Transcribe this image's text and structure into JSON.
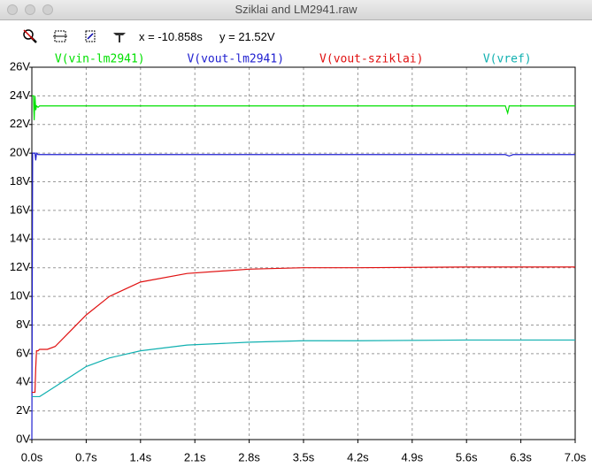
{
  "window": {
    "title": "Sziklai and LM2941.raw"
  },
  "toolbar": {
    "x_readout": "x = -10.858s",
    "y_readout": "y = 21.52V"
  },
  "chart_data": {
    "type": "line",
    "xlim": [
      0,
      7.0
    ],
    "ylim": [
      0,
      26
    ],
    "xticks": [
      {
        "value": 0,
        "label": "0.0s"
      },
      {
        "value": 0.7,
        "label": "0.7s"
      },
      {
        "value": 1.4,
        "label": "1.4s"
      },
      {
        "value": 2.1,
        "label": "2.1s"
      },
      {
        "value": 2.8,
        "label": "2.8s"
      },
      {
        "value": 3.5,
        "label": "3.5s"
      },
      {
        "value": 4.2,
        "label": "4.2s"
      },
      {
        "value": 4.9,
        "label": "4.9s"
      },
      {
        "value": 5.6,
        "label": "5.6s"
      },
      {
        "value": 6.3,
        "label": "6.3s"
      },
      {
        "value": 7.0,
        "label": "7.0s"
      }
    ],
    "yticks": [
      {
        "value": 0,
        "label": "0V"
      },
      {
        "value": 2,
        "label": "2V"
      },
      {
        "value": 4,
        "label": "4V"
      },
      {
        "value": 6,
        "label": "6V"
      },
      {
        "value": 8,
        "label": "8V"
      },
      {
        "value": 10,
        "label": "10V"
      },
      {
        "value": 12,
        "label": "12V"
      },
      {
        "value": 14,
        "label": "14V"
      },
      {
        "value": 16,
        "label": "16V"
      },
      {
        "value": 18,
        "label": "18V"
      },
      {
        "value": 20,
        "label": "20V"
      },
      {
        "value": 22,
        "label": "22V"
      },
      {
        "value": 24,
        "label": "24V"
      },
      {
        "value": 26,
        "label": "26V"
      }
    ],
    "grid": true,
    "series": [
      {
        "name": "V(vin-lm2941)",
        "color": "#00e000",
        "x": [
          0,
          0.02,
          0.03,
          0.04,
          0.05,
          0.06,
          0.08,
          0.1,
          6.1,
          6.13,
          6.15,
          6.17,
          7.0
        ],
        "values": [
          24,
          24,
          22.3,
          24,
          23,
          23.3,
          23.2,
          23.3,
          23.3,
          22.8,
          23.3,
          23.3,
          23.3
        ]
      },
      {
        "name": "V(vout-lm2941)",
        "color": "#2020d0",
        "x": [
          0,
          0.01,
          0.02,
          0.04,
          0.05,
          0.06,
          0.08,
          6.1,
          6.15,
          6.2,
          7.0
        ],
        "values": [
          0,
          20,
          20,
          20,
          19.5,
          20,
          19.9,
          19.9,
          19.8,
          19.9,
          19.9
        ]
      },
      {
        "name": "V(vout-sziklai)",
        "color": "#e01010",
        "x": [
          0,
          0.02,
          0.04,
          0.05,
          0.06,
          0.08,
          0.1,
          0.2,
          0.3,
          0.5,
          0.7,
          1.0,
          1.4,
          2.0,
          2.8,
          3.5,
          4.2,
          5.6,
          7.0
        ],
        "values": [
          3.3,
          3.3,
          3.3,
          5.0,
          6.2,
          6.2,
          6.3,
          6.3,
          6.5,
          7.6,
          8.7,
          10.0,
          11.0,
          11.6,
          11.9,
          12.0,
          12.0,
          12.05,
          12.05
        ]
      },
      {
        "name": "V(vref)",
        "color": "#10b0b0",
        "x": [
          0,
          0.1,
          0.3,
          0.5,
          0.7,
          1.0,
          1.4,
          2.0,
          2.8,
          3.5,
          4.2,
          5.6,
          7.0
        ],
        "values": [
          3.0,
          3.0,
          3.7,
          4.4,
          5.1,
          5.7,
          6.2,
          6.6,
          6.8,
          6.9,
          6.9,
          6.95,
          6.95
        ]
      }
    ]
  }
}
